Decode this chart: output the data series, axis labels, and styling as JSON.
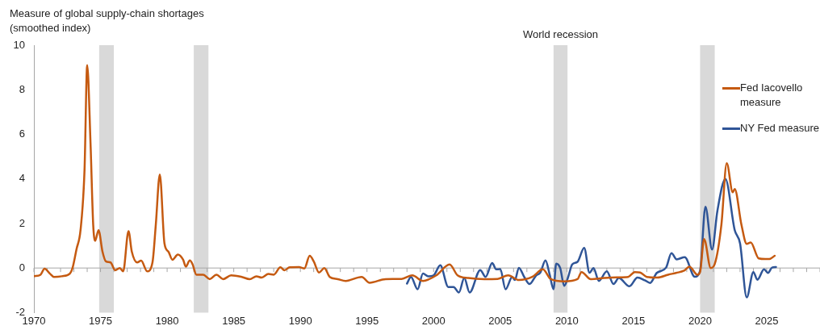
{
  "chart_data": {
    "type": "line",
    "ylabel": "Measure of global supply-chain shortages\n(smoothed index)",
    "xlim": [
      1970,
      2029
    ],
    "xticks": [
      1970,
      1975,
      1980,
      1985,
      1990,
      1995,
      2000,
      2005,
      2010,
      2015,
      2020,
      2025
    ],
    "ylim": [
      -2,
      10
    ],
    "yticks": [
      -2,
      0,
      2,
      4,
      6,
      8,
      10
    ],
    "grid": false,
    "legend": "top right",
    "marker": "none",
    "line_style": "solid",
    "ref_lines": [
      {
        "axis": "y",
        "value": 0,
        "color": "#a6a6a6"
      }
    ],
    "bands": [
      {
        "axis": "x",
        "from": 1974.9,
        "to": 1976.0,
        "color": "#d9d9d9"
      },
      {
        "axis": "x",
        "from": 1982.0,
        "to": 1983.1,
        "color": "#d9d9d9"
      },
      {
        "axis": "x",
        "from": 2009.0,
        "to": 2010.05,
        "color": "#d9d9d9",
        "label": "World recession"
      },
      {
        "axis": "x",
        "from": 2020.0,
        "to": 2021.1,
        "color": "#d9d9d9"
      }
    ],
    "series": [
      {
        "name": "Fed Iacovello measure",
        "color": "#c55a11",
        "x": [
          1970,
          1970.5,
          1970.8,
          1971.2,
          1971.5,
          1972.1,
          1972.7,
          1972.9,
          1973.2,
          1973.5,
          1973.8,
          1974.0,
          1974.25,
          1974.45,
          1974.6,
          1974.85,
          1975.15,
          1975.4,
          1975.75,
          1976.1,
          1976.45,
          1976.7,
          1977.1,
          1977.35,
          1977.75,
          1978.05,
          1978.5,
          1978.9,
          1979.15,
          1979.45,
          1979.8,
          1980.1,
          1980.4,
          1980.8,
          1981.2,
          1981.4,
          1981.7,
          1981.9,
          1982.2,
          1982.7,
          1983.2,
          1983.7,
          1984.2,
          1984.8,
          1985.6,
          1986.2,
          1986.7,
          1987.1,
          1987.6,
          1988.0,
          1988.5,
          1988.8,
          1989.2,
          1989.9,
          1990.3,
          1990.7,
          1991.0,
          1991.4,
          1991.8,
          1992.2,
          1992.8,
          1993.4,
          1994.6,
          1995.2,
          1996.4,
          1997.6,
          1998.4,
          1999.2,
          2000.2,
          2001.2,
          2001.8,
          2002.6,
          2003.8,
          2004.8,
          2005.6,
          2006.4,
          2007.4,
          2008.2,
          2008.8,
          2009.8,
          2010.8,
          2011.1,
          2011.8,
          2012.8,
          2013.8,
          2014.6,
          2015.1,
          2015.5,
          2016.0,
          2016.8,
          2017.6,
          2018.2,
          2018.8,
          2019.2,
          2019.8,
          2020.0,
          2020.3,
          2020.8,
          2021.1,
          2021.6,
          2022.0,
          2022.45,
          2022.6,
          2023.1,
          2023.5,
          2023.8,
          2024.4,
          2024.9,
          2025.2,
          2025.6
        ],
        "values": [
          -0.37,
          -0.3,
          -0.03,
          -0.25,
          -0.4,
          -0.37,
          -0.25,
          0,
          0.85,
          1.7,
          4.4,
          9.1,
          5.6,
          1.95,
          1.22,
          1.7,
          0.73,
          0.3,
          0.25,
          -0.1,
          0,
          -0.15,
          1.65,
          0.73,
          0.25,
          0.33,
          -0.15,
          0.25,
          1.95,
          4.2,
          1.1,
          0.73,
          0.37,
          0.6,
          0.37,
          0.06,
          0.34,
          0.18,
          -0.3,
          -0.3,
          -0.5,
          -0.3,
          -0.5,
          -0.33,
          -0.4,
          -0.5,
          -0.37,
          -0.43,
          -0.27,
          -0.3,
          0.03,
          -0.1,
          0.03,
          0.04,
          -0.02,
          0.55,
          0.3,
          -0.2,
          0,
          -0.4,
          -0.5,
          -0.58,
          -0.4,
          -0.66,
          -0.5,
          -0.49,
          -0.33,
          -0.58,
          -0.33,
          0.16,
          -0.33,
          -0.45,
          -0.5,
          -0.49,
          -0.33,
          -0.54,
          -0.4,
          -0.06,
          -0.5,
          -0.6,
          -0.5,
          -0.18,
          -0.5,
          -0.45,
          -0.42,
          -0.4,
          -0.18,
          -0.2,
          -0.4,
          -0.43,
          -0.3,
          -0.22,
          -0.12,
          0.06,
          -0.3,
          -0.18,
          1.3,
          0,
          0.18,
          1.95,
          4.7,
          3.4,
          3.55,
          1.95,
          1.08,
          1.15,
          0.43,
          0.4,
          0.4,
          0.55
        ]
      },
      {
        "name": "NY Fed measure",
        "color": "#2f5597",
        "x": [
          1998.0,
          1998.3,
          1998.8,
          1999.2,
          1999.6,
          2000.0,
          2000.5,
          2001.1,
          2001.5,
          2001.9,
          2002.3,
          2002.7,
          2003.5,
          2003.9,
          2004.4,
          2004.7,
          2005.0,
          2005.4,
          2005.9,
          2006.1,
          2006.4,
          2006.8,
          2007.2,
          2007.7,
          2008.0,
          2008.4,
          2008.7,
          2009.0,
          2009.2,
          2009.5,
          2009.8,
          2010.1,
          2010.4,
          2010.8,
          2011.3,
          2011.7,
          2012.0,
          2012.4,
          2013.0,
          2013.5,
          2013.9,
          2014.7,
          2015.3,
          2015.85,
          2016.25,
          2016.75,
          2017.45,
          2017.85,
          2018.25,
          2018.85,
          2019.6,
          2020.0,
          2020.4,
          2020.9,
          2021.3,
          2021.9,
          2022.6,
          2023.0,
          2023.5,
          2024.0,
          2024.3,
          2024.8,
          2025.1,
          2025.4,
          2025.7
        ],
        "values": [
          -0.7,
          -0.4,
          -0.95,
          -0.25,
          -0.37,
          -0.33,
          0.12,
          -0.85,
          -0.85,
          -1.1,
          -0.45,
          -1.1,
          -0.09,
          -0.4,
          0.22,
          -0.06,
          -0.05,
          -0.95,
          -0.4,
          -0.54,
          0.01,
          -0.4,
          -0.72,
          -0.33,
          -0.21,
          0.34,
          -0.27,
          -0.95,
          0.2,
          0,
          -0.8,
          -0.4,
          0.16,
          0.28,
          0.9,
          -0.21,
          0,
          -0.58,
          -0.15,
          -0.72,
          -0.45,
          -0.82,
          -0.43,
          -0.55,
          -0.67,
          -0.22,
          0.02,
          0.67,
          0.39,
          0.49,
          -0.39,
          -0.12,
          2.75,
          0.83,
          2.57,
          4.0,
          1.7,
          1.1,
          -1.32,
          -0.18,
          -0.53,
          -0.06,
          -0.22,
          0.02,
          0.04
        ]
      }
    ]
  }
}
